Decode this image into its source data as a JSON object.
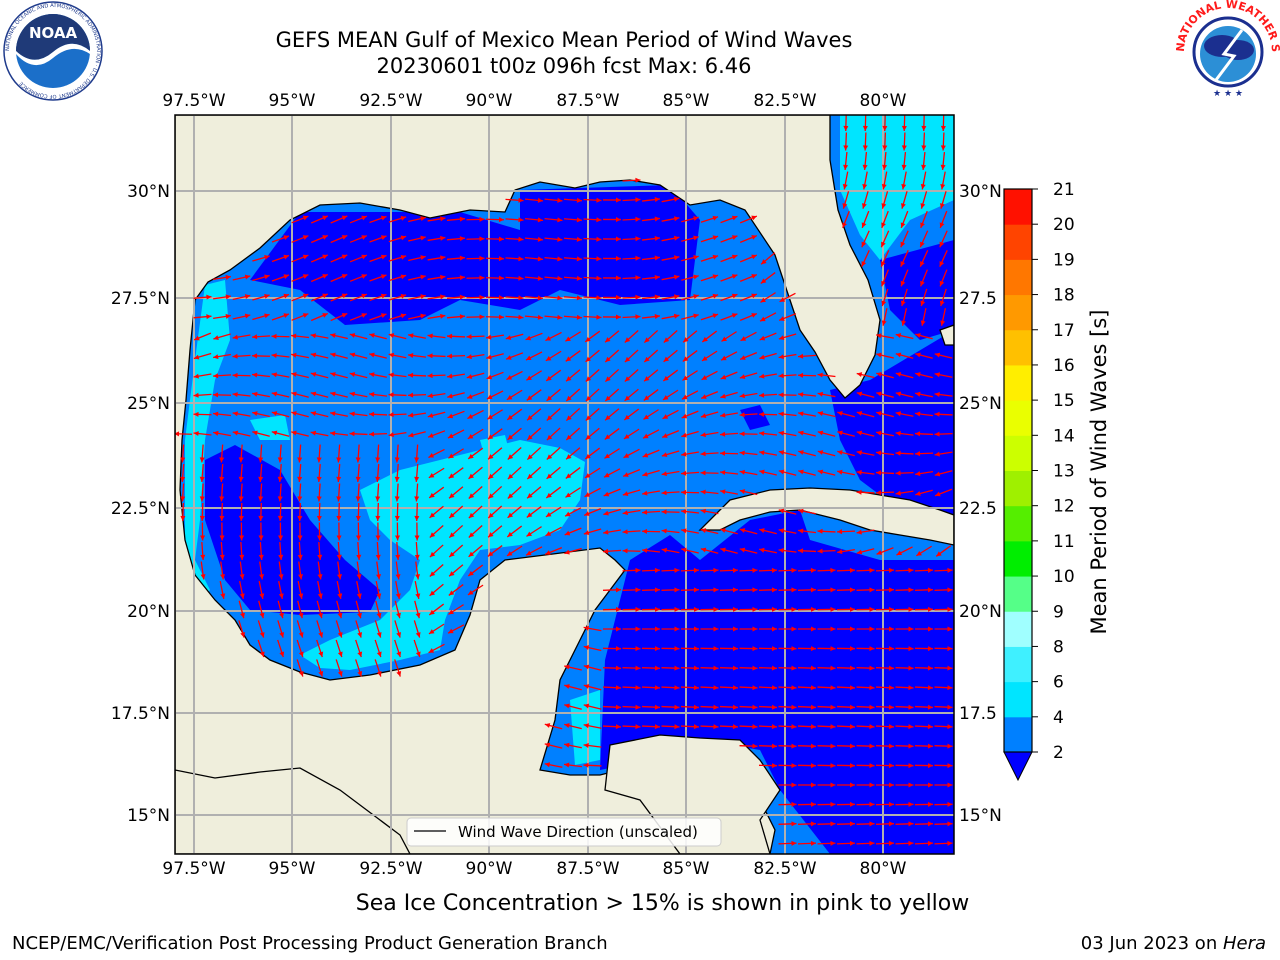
{
  "title": {
    "line1": "GEFS MEAN Gulf of Mexico Mean Period of Wind Waves",
    "line2": "20230601 t00z 096h fcst   Max: 6.46"
  },
  "logos": {
    "noaa_text": "NOAA",
    "noaa_ring": "NATIONAL OCEANIC AND ATMOSPHERIC ADMINISTRATION · U.S. DEPARTMENT OF COMMERCE",
    "nws_ring": "NATIONAL WEATHER SERVICE"
  },
  "map": {
    "lon_labels": [
      "97.5°W",
      "95°W",
      "92.5°W",
      "90°W",
      "87.5°W",
      "85°W",
      "82.5°W",
      "80°W"
    ],
    "lat_labels_left": [
      "30°N",
      "27.5°N",
      "25°N",
      "22.5°N",
      "20°N",
      "17.5°N",
      "15°N"
    ],
    "lat_labels_right": [
      "30°N",
      "27.5",
      "25°N",
      "22.5",
      "20°N",
      "17.5",
      "15°N"
    ],
    "legend_label": "Wind Wave Direction (unscaled)",
    "arrow_color": "#ff0000",
    "land_color": "#efeedc"
  },
  "colorbar": {
    "label": "Mean Period of Wind Waves [s]",
    "ticks": [
      "2",
      "4",
      "6",
      "8",
      "9",
      "10",
      "11",
      "12",
      "13",
      "14",
      "15",
      "16",
      "17",
      "18",
      "19",
      "20",
      "21"
    ],
    "colors": [
      "#0000ff",
      "#0080ff",
      "#00e5ff",
      "#3ff0ff",
      "#a0ffff",
      "#55ff88",
      "#00ee00",
      "#55ee00",
      "#9ff000",
      "#ccff00",
      "#eaff00",
      "#ffee00",
      "#ffc000",
      "#ff9900",
      "#ff7700",
      "#ff4400",
      "#ff1100",
      "#ff0000"
    ]
  },
  "subnote": "Sea Ice Concentration > 15% is shown in pink to yellow",
  "footer": {
    "left": "NCEP/EMC/Verification Post Processing Product Generation Branch",
    "right_prefix": "03 Jun 2023 on ",
    "right_host": "Hera"
  }
}
